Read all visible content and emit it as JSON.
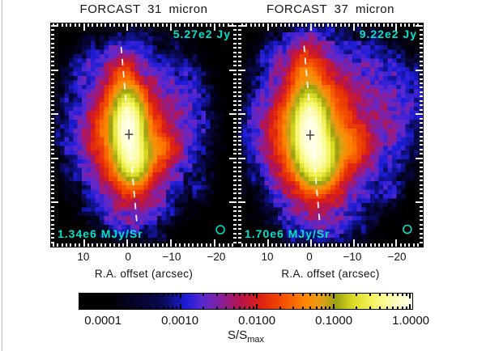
{
  "figure": {
    "annotation_color": "#00E2CC",
    "panels": [
      {
        "title": "FORCAST 31 micron",
        "peak_flux": "5.27e2 Jy",
        "peak_surface_brightness": "1.34e6 MJy/Sr",
        "x_ticks": [
          "10",
          "0",
          "−10",
          "−20"
        ],
        "x_label": "R.A. offset (arcsec)"
      },
      {
        "title": "FORCAST 37 micron",
        "peak_flux": "9.22e2 Jy",
        "peak_surface_brightness": "1.70e6 MJy/Sr",
        "x_ticks": [
          "10",
          "0",
          "−10",
          "−20"
        ],
        "x_label": "R.A. offset (arcsec)"
      }
    ],
    "colorbar": {
      "tick_labels": [
        "0.0001",
        "0.0010",
        "0.0100",
        "0.1000",
        "1.0000"
      ],
      "title_base": "S/S",
      "title_sub": "max"
    }
  },
  "chart_data": [
    {
      "type": "heatmap",
      "title": "FORCAST 31 micron",
      "xlabel": "R.A. offset (arcsec)",
      "x_ticks": [
        10,
        0,
        -10,
        -20
      ],
      "x_range_arcsec": [
        17.5,
        -24.5
      ],
      "y_axis": "unlabeled, ticks every 1 arcsec with major ticks every 10 arcsec",
      "color_scale": "log",
      "normalized_intensity_range": [
        0.0001,
        1.0
      ],
      "peak_flux_label": "5.27e2 Jy",
      "peak_surface_brightness_label": "1.34e6 MJy/Sr",
      "annotations": [
        "white dashed symmetry axis",
        "dark plus marker at intensity peak",
        "cyan beam-size circle at lower right"
      ],
      "morphology": "compact pale-yellow core elongated N-S with olive rim, orange/red inner envelope, purple-blue outer halo on black background"
    },
    {
      "type": "heatmap",
      "title": "FORCAST 37 micron",
      "xlabel": "R.A. offset (arcsec)",
      "x_ticks": [
        10,
        0,
        -10,
        -20
      ],
      "x_range_arcsec": [
        17.5,
        -24.5
      ],
      "y_axis": "unlabeled, ticks every 1 arcsec with major ticks every 10 arcsec",
      "color_scale": "log",
      "normalized_intensity_range": [
        0.0001,
        1.0
      ],
      "peak_flux_label": "9.22e2 Jy",
      "peak_surface_brightness_label": "1.70e6 MJy/Sr",
      "annotations": [
        "white dashed symmetry axis",
        "dark plus marker at intensity peak",
        "cyan beam-size circle at lower right"
      ],
      "morphology": "same source, brighter and more extended red/orange envelope with purple haze reaching the east edge"
    },
    {
      "type": "colorbar",
      "label": "S/S_max",
      "scale": "log",
      "ticks": [
        0.0001,
        0.001,
        0.01,
        0.1,
        1.0
      ],
      "colormap_stops_hex": [
        "#000000",
        "#0a0a55",
        "#1c1cd8",
        "#5a28d0",
        "#8c1e96",
        "#b41450",
        "#dc1e14",
        "#f04600",
        "#ff8700",
        "#98a010",
        "#d8d820",
        "#f5f560",
        "#ffffe4"
      ]
    }
  ]
}
